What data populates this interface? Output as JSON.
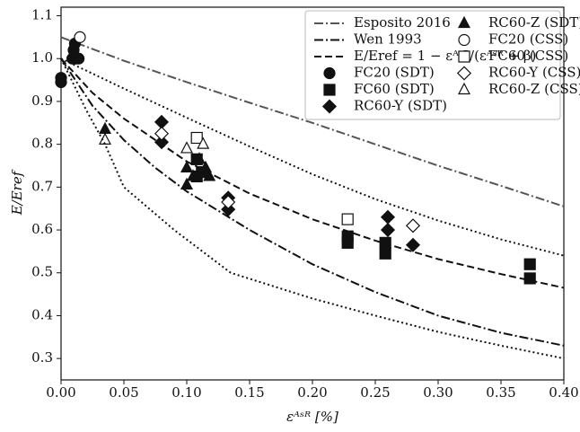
{
  "chart_data": {
    "type": "scatter",
    "x_label": "εᴬˢᴿ [%]",
    "y_label": "E/Eref",
    "xlim": [
      0,
      0.4
    ],
    "ylim": [
      0.25,
      1.12
    ],
    "xticks": [
      {
        "value": 0,
        "label": "0.00"
      },
      0.05,
      {
        "value": 0.1,
        "label": "0.10"
      },
      0.15,
      {
        "value": 0.2,
        "label": "0.20"
      },
      0.25,
      {
        "value": 0.3,
        "label": "0.30"
      },
      0.35,
      {
        "value": 0.4,
        "label": "0.40"
      }
    ],
    "yticks": [
      0.3,
      0.4,
      0.5,
      0.6,
      0.7,
      0.8,
      0.9,
      {
        "value": 1,
        "label": "1.0"
      },
      1.1
    ],
    "grid": false,
    "legend": "upper right",
    "series": [
      {
        "name": "Esposito 2016",
        "kind": "line",
        "style": "dashdot",
        "color": "#555555",
        "x": [
          0,
          0.05,
          0.1,
          0.15,
          0.2,
          0.25,
          0.3,
          0.35,
          0.4
        ],
        "values": [
          1.05,
          0.995,
          0.945,
          0.897,
          0.85,
          0.8,
          0.75,
          0.703,
          0.655
        ]
      },
      {
        "name": "Wen 1993",
        "kind": "line",
        "style": "dashdot",
        "color": "#111111",
        "x": [
          0,
          0.025,
          0.05,
          0.075,
          0.1,
          0.15,
          0.2,
          0.25,
          0.3,
          0.35,
          0.4
        ],
        "values": [
          1.0,
          0.89,
          0.81,
          0.745,
          0.69,
          0.6,
          0.52,
          0.455,
          0.4,
          0.36,
          0.33
        ]
      },
      {
        "name": "E/Eref = 1 − εᴬˢᴿ/(εᴬˢᴿ + β)",
        "kind": "line",
        "style": "dashed",
        "color": "#111111",
        "x": [
          0,
          0.025,
          0.05,
          0.1,
          0.15,
          0.2,
          0.25,
          0.3,
          0.35,
          0.4
        ],
        "values": [
          1.0,
          0.92,
          0.86,
          0.76,
          0.685,
          0.625,
          0.575,
          0.532,
          0.497,
          0.465
        ]
      },
      {
        "name": "FC20 (SDT)",
        "kind": "marker",
        "marker": "circle",
        "filled": true,
        "color": "#111111",
        "x": [
          0.0,
          0.0,
          0.009,
          0.01,
          0.011,
          0.012,
          0.014
        ],
        "values": [
          0.945,
          0.955,
          1.0,
          1.02,
          1.035,
          1.0,
          1.0
        ]
      },
      {
        "name": "FC60 (SDT)",
        "kind": "marker",
        "marker": "square",
        "filled": true,
        "color": "#111111",
        "x": [
          0.108,
          0.108,
          0.112,
          0.228,
          0.228,
          0.258,
          0.258,
          0.373,
          0.373
        ],
        "values": [
          0.765,
          0.725,
          0.735,
          0.585,
          0.57,
          0.57,
          0.545,
          0.52,
          0.487
        ]
      },
      {
        "name": "RC60-Y (SDT)",
        "kind": "marker",
        "marker": "diamond",
        "filled": true,
        "color": "#111111",
        "x": [
          0.08,
          0.08,
          0.133,
          0.133,
          0.26,
          0.26,
          0.28
        ],
        "values": [
          0.852,
          0.805,
          0.675,
          0.648,
          0.63,
          0.6,
          0.565
        ]
      },
      {
        "name": "RC60-Z (SDT)",
        "kind": "marker",
        "marker": "triangle",
        "filled": true,
        "color": "#111111",
        "x": [
          0.035,
          0.1,
          0.1,
          0.105,
          0.11,
          0.115,
          0.118
        ],
        "values": [
          0.835,
          0.745,
          0.705,
          0.725,
          0.765,
          0.745,
          0.725
        ]
      },
      {
        "name": "FC20 (CSS)",
        "kind": "marker",
        "marker": "circle",
        "filled": false,
        "color": "#111111",
        "x": [
          0.015
        ],
        "values": [
          1.05
        ]
      },
      {
        "name": "FC60 (CSS)",
        "kind": "marker",
        "marker": "square",
        "filled": false,
        "color": "#111111",
        "x": [
          0.108,
          0.228
        ],
        "values": [
          0.815,
          0.625
        ]
      },
      {
        "name": "RC60-Y (CSS)",
        "kind": "marker",
        "marker": "diamond",
        "filled": false,
        "color": "#111111",
        "x": [
          0.08,
          0.133,
          0.28
        ],
        "values": [
          0.825,
          0.665,
          0.61
        ]
      },
      {
        "name": "RC60-Z (CSS)",
        "kind": "marker",
        "marker": "triangle",
        "filled": false,
        "color": "#111111",
        "x": [
          0.035,
          0.1,
          0.113
        ],
        "values": [
          0.81,
          0.79,
          0.8
        ]
      },
      {
        "kind": "line",
        "style": "dotted",
        "color": "#111111",
        "x": [
          0,
          0.05,
          0.1,
          0.15,
          0.2,
          0.25,
          0.3,
          0.35,
          0.4
        ],
        "values": [
          1.0,
          0.93,
          0.862,
          0.795,
          0.73,
          0.672,
          0.622,
          0.578,
          0.54
        ]
      },
      {
        "kind": "line",
        "style": "dotted",
        "color": "#111111",
        "x": [
          0,
          0.02,
          0.035,
          0.05,
          0.09,
          0.135,
          0.2,
          0.25,
          0.3,
          0.35,
          0.4
        ],
        "values": [
          1.0,
          0.88,
          0.8,
          0.7,
          0.6,
          0.5,
          0.44,
          0.4,
          0.362,
          0.33,
          0.3
        ]
      }
    ]
  }
}
